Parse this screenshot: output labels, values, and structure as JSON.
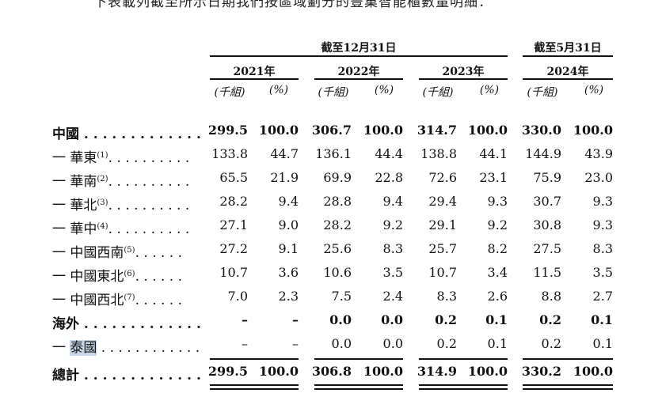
{
  "intro": "下表載列截至所示日期我們按區域劃分的豐巢智能櫃數量明細：",
  "headers": {
    "group_dec": "截至12月31日",
    "group_may": "截至5月31日",
    "years": [
      "2021年",
      "2022年",
      "2023年",
      "2024年"
    ],
    "unit_thousand": "(千組)",
    "unit_pct": "(%)"
  },
  "rows": [
    {
      "label": "中國 . . . . . . . . . . . . .",
      "values": [
        "299.5",
        "100.0",
        "306.7",
        "100.0",
        "314.7",
        "100.0",
        "330.0",
        "100.0"
      ]
    },
    {
      "label": "一 華東",
      "note": "(1)",
      "dots": ". . . . . . . . . .",
      "values": [
        "133.8",
        "44.7",
        "136.1",
        "44.4",
        "138.8",
        "44.1",
        "144.9",
        "43.9"
      ]
    },
    {
      "label": "一 華南",
      "note": "(2)",
      "dots": ". . . . . . . . . .",
      "values": [
        "65.5",
        "21.9",
        "69.9",
        "22.8",
        "72.6",
        "23.1",
        "75.9",
        "23.0"
      ]
    },
    {
      "label": "一 華北",
      "note": "(3)",
      "dots": ". . . . . . . . . .",
      "values": [
        "28.2",
        "9.4",
        "28.8",
        "9.4",
        "29.4",
        "9.3",
        "30.7",
        "9.3"
      ]
    },
    {
      "label": "一 華中",
      "note": "(4)",
      "dots": ". . . . . . . . . .",
      "values": [
        "27.1",
        "9.0",
        "28.2",
        "9.2",
        "29.1",
        "9.2",
        "30.8",
        "9.3"
      ]
    },
    {
      "label": "一 中國西南",
      "note": "(5)",
      "dots": ". . . . . .",
      "values": [
        "27.2",
        "9.1",
        "25.6",
        "8.3",
        "25.7",
        "8.2",
        "27.5",
        "8.3"
      ]
    },
    {
      "label": "一 中國東北",
      "note": "(6)",
      "dots": ". . . . . .",
      "values": [
        "10.7",
        "3.6",
        "10.6",
        "3.5",
        "10.7",
        "3.4",
        "11.5",
        "3.5"
      ]
    },
    {
      "label": "一 中國西北",
      "note": "(7)",
      "dots": ". . . . . .",
      "values": [
        "7.0",
        "2.3",
        "7.5",
        "2.4",
        "8.3",
        "2.6",
        "8.8",
        "2.7"
      ]
    },
    {
      "label": "海外 . . . . . . . . . . . . .",
      "values": [
        "–",
        "–",
        "0.0",
        "0.0",
        "0.2",
        "0.1",
        "0.2",
        "0.1"
      ]
    },
    {
      "label_prefix": "一 ",
      "label_hl": "泰國",
      "dots": " . . . . . . . . . . . .",
      "values": [
        "–",
        "–",
        "0.0",
        "0.0",
        "0.2",
        "0.1",
        "0.2",
        "0.1"
      ]
    },
    {
      "label": "總計 . . . . . . . . . . . . .",
      "values": [
        "299.5",
        "100.0",
        "306.8",
        "100.0",
        "314.9",
        "100.0",
        "330.2",
        "100.0"
      ]
    }
  ]
}
